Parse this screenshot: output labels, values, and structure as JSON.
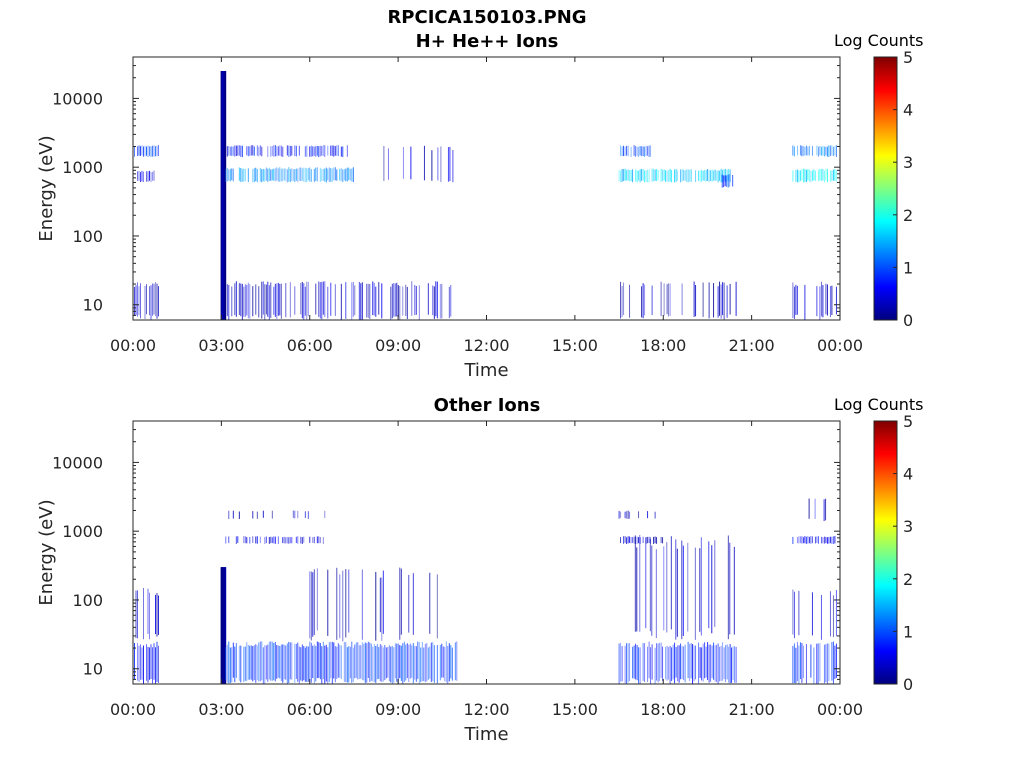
{
  "figure": {
    "title": "RPCICA150103.PNG",
    "colors": {
      "axis": "#262626",
      "colormap": "jet"
    }
  },
  "chart_data": [
    {
      "type": "heatmap",
      "title": "H+ He++ Ions",
      "xlabel": "Time",
      "ylabel": "Energy (eV)",
      "x_ticks": [
        "00:00",
        "03:00",
        "06:00",
        "09:00",
        "12:00",
        "15:00",
        "18:00",
        "21:00",
        "00:00"
      ],
      "y_ticks": [
        "10",
        "100",
        "1000",
        "10000"
      ],
      "y_scale": "log",
      "ylim": [
        6,
        40000
      ],
      "xlim_hours": [
        0,
        24
      ],
      "colorbar": {
        "label": "Log Counts",
        "ticks": [
          "0",
          "1",
          "2",
          "3",
          "4",
          "5"
        ],
        "range": [
          0,
          5
        ]
      },
      "features": [
        {
          "t_start": 0.0,
          "t_end": 0.9,
          "e_low": 6,
          "e_high": 22,
          "level": 0.3,
          "density": 0.55
        },
        {
          "t_start": 0.0,
          "t_end": 0.9,
          "e_low": 1400,
          "e_high": 2100,
          "level": 0.9,
          "density": 0.9
        },
        {
          "t_start": 0.0,
          "t_end": 0.9,
          "e_low": 600,
          "e_high": 900,
          "level": 0.5,
          "density": 0.7
        },
        {
          "t_start": 3.0,
          "t_end": 3.15,
          "e_low": 6,
          "e_high": 25000,
          "level": 0.05,
          "density": 1.0
        },
        {
          "t_start": 3.15,
          "t_end": 7.3,
          "e_low": 1400,
          "e_high": 2100,
          "level": 0.7,
          "density": 0.75
        },
        {
          "t_start": 3.15,
          "t_end": 7.5,
          "e_low": 600,
          "e_high": 1000,
          "level": 1.3,
          "density": 0.9
        },
        {
          "t_start": 3.2,
          "t_end": 11.0,
          "e_low": 6,
          "e_high": 22,
          "level": 0.35,
          "density": 0.6
        },
        {
          "t_start": 7.5,
          "t_end": 11.0,
          "e_low": 600,
          "e_high": 2100,
          "level": 0.4,
          "density": 0.2
        },
        {
          "t_start": 16.5,
          "t_end": 20.3,
          "e_low": 600,
          "e_high": 950,
          "level": 1.6,
          "density": 0.9
        },
        {
          "t_start": 16.5,
          "t_end": 17.6,
          "e_low": 1400,
          "e_high": 2100,
          "level": 1.0,
          "density": 0.8
        },
        {
          "t_start": 16.5,
          "t_end": 20.5,
          "e_low": 6,
          "e_high": 22,
          "level": 0.3,
          "density": 0.35
        },
        {
          "t_start": 20.0,
          "t_end": 20.4,
          "e_low": 500,
          "e_high": 800,
          "level": 0.9,
          "density": 0.9
        },
        {
          "t_start": 22.4,
          "t_end": 23.9,
          "e_low": 600,
          "e_high": 950,
          "level": 1.8,
          "density": 0.9
        },
        {
          "t_start": 22.4,
          "t_end": 23.9,
          "e_low": 1400,
          "e_high": 2100,
          "level": 1.2,
          "density": 0.8
        },
        {
          "t_start": 22.4,
          "t_end": 23.9,
          "e_low": 6,
          "e_high": 22,
          "level": 0.3,
          "density": 0.35
        }
      ]
    },
    {
      "type": "heatmap",
      "title": "Other Ions",
      "xlabel": "Time",
      "ylabel": "Energy (eV)",
      "x_ticks": [
        "00:00",
        "03:00",
        "06:00",
        "09:00",
        "12:00",
        "15:00",
        "18:00",
        "21:00",
        "00:00"
      ],
      "y_ticks": [
        "10",
        "100",
        "1000",
        "10000"
      ],
      "y_scale": "log",
      "ylim": [
        6,
        40000
      ],
      "xlim_hours": [
        0,
        24
      ],
      "colorbar": {
        "label": "Log Counts",
        "ticks": [
          "0",
          "1",
          "2",
          "3",
          "4",
          "5"
        ],
        "range": [
          0,
          5
        ]
      },
      "features": [
        {
          "t_start": 0.0,
          "t_end": 0.9,
          "e_low": 6,
          "e_high": 25,
          "level": 0.6,
          "density": 0.85
        },
        {
          "t_start": 0.0,
          "t_end": 0.9,
          "e_low": 25,
          "e_high": 150,
          "level": 0.3,
          "density": 0.2
        },
        {
          "t_start": 3.0,
          "t_end": 3.15,
          "e_low": 6,
          "e_high": 300,
          "level": 0.05,
          "density": 1.0
        },
        {
          "t_start": 3.15,
          "t_end": 11.0,
          "e_low": 6,
          "e_high": 25,
          "level": 0.9,
          "density": 0.95
        },
        {
          "t_start": 3.15,
          "t_end": 6.5,
          "e_low": 650,
          "e_high": 850,
          "level": 0.5,
          "density": 0.6
        },
        {
          "t_start": 3.15,
          "t_end": 7.0,
          "e_low": 1500,
          "e_high": 2000,
          "level": 0.3,
          "density": 0.2
        },
        {
          "t_start": 6.0,
          "t_end": 11.0,
          "e_low": 25,
          "e_high": 300,
          "level": 0.3,
          "density": 0.2
        },
        {
          "t_start": 16.5,
          "t_end": 20.5,
          "e_low": 6,
          "e_high": 25,
          "level": 0.8,
          "density": 0.9
        },
        {
          "t_start": 17.0,
          "t_end": 20.5,
          "e_low": 25,
          "e_high": 900,
          "level": 0.4,
          "density": 0.35
        },
        {
          "t_start": 16.5,
          "t_end": 18.0,
          "e_low": 650,
          "e_high": 850,
          "level": 0.4,
          "density": 0.6
        },
        {
          "t_start": 16.5,
          "t_end": 17.8,
          "e_low": 1500,
          "e_high": 2000,
          "level": 0.3,
          "density": 0.3
        },
        {
          "t_start": 22.4,
          "t_end": 23.9,
          "e_low": 6,
          "e_high": 25,
          "level": 0.8,
          "density": 0.8
        },
        {
          "t_start": 22.4,
          "t_end": 23.9,
          "e_low": 25,
          "e_high": 150,
          "level": 0.3,
          "density": 0.25
        },
        {
          "t_start": 22.4,
          "t_end": 23.9,
          "e_low": 650,
          "e_high": 850,
          "level": 0.6,
          "density": 0.7
        },
        {
          "t_start": 22.9,
          "t_end": 23.7,
          "e_low": 1400,
          "e_high": 3000,
          "level": 0.3,
          "density": 0.3
        }
      ]
    }
  ]
}
